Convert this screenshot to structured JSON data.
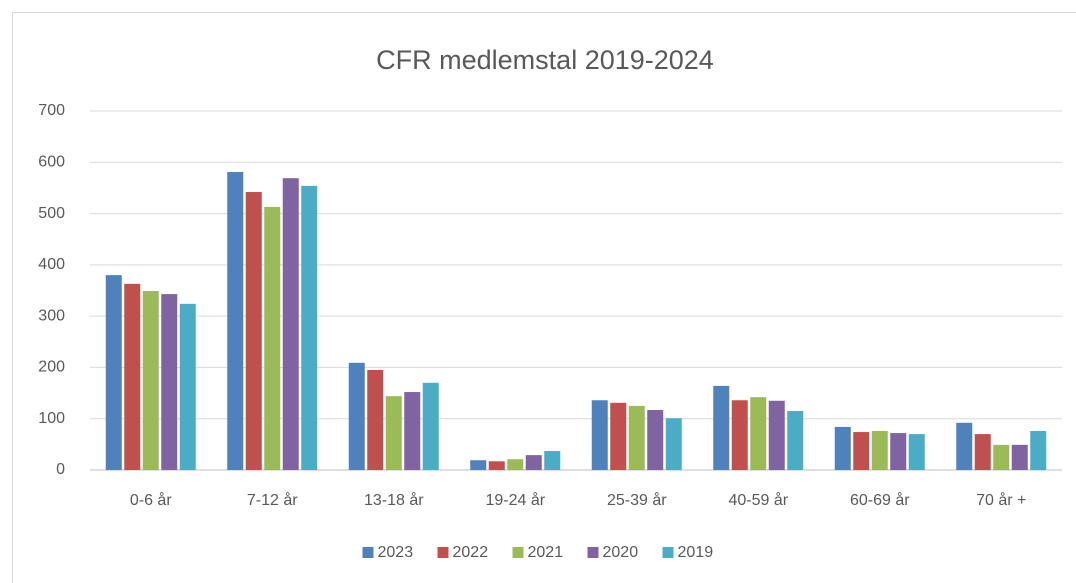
{
  "chart_data": {
    "type": "bar",
    "title": "CFR medlemstal 2019-2024",
    "categories": [
      "0-6 år",
      "7-12 år",
      "13-18 år",
      "19-24 år",
      "25-39 år",
      "40-59 år",
      "60-69 år",
      "70 år +"
    ],
    "series": [
      {
        "name": "2023",
        "color": "#4f81bd",
        "values": [
          380,
          581,
          209,
          19,
          136,
          164,
          84,
          92
        ]
      },
      {
        "name": "2022",
        "color": "#c0504d",
        "values": [
          363,
          542,
          195,
          17,
          131,
          136,
          74,
          70
        ]
      },
      {
        "name": "2021",
        "color": "#9bbb59",
        "values": [
          349,
          513,
          144,
          21,
          125,
          142,
          76,
          49
        ]
      },
      {
        "name": "2020",
        "color": "#8064a2",
        "values": [
          343,
          569,
          152,
          29,
          117,
          135,
          72,
          49
        ]
      },
      {
        "name": "2019",
        "color": "#4bacc6",
        "values": [
          324,
          554,
          170,
          37,
          101,
          115,
          70,
          76
        ]
      }
    ],
    "ylim": [
      0,
      700
    ],
    "yticks": [
      0,
      100,
      200,
      300,
      400,
      500,
      600,
      700
    ],
    "grid": true,
    "legend": "bottom"
  }
}
